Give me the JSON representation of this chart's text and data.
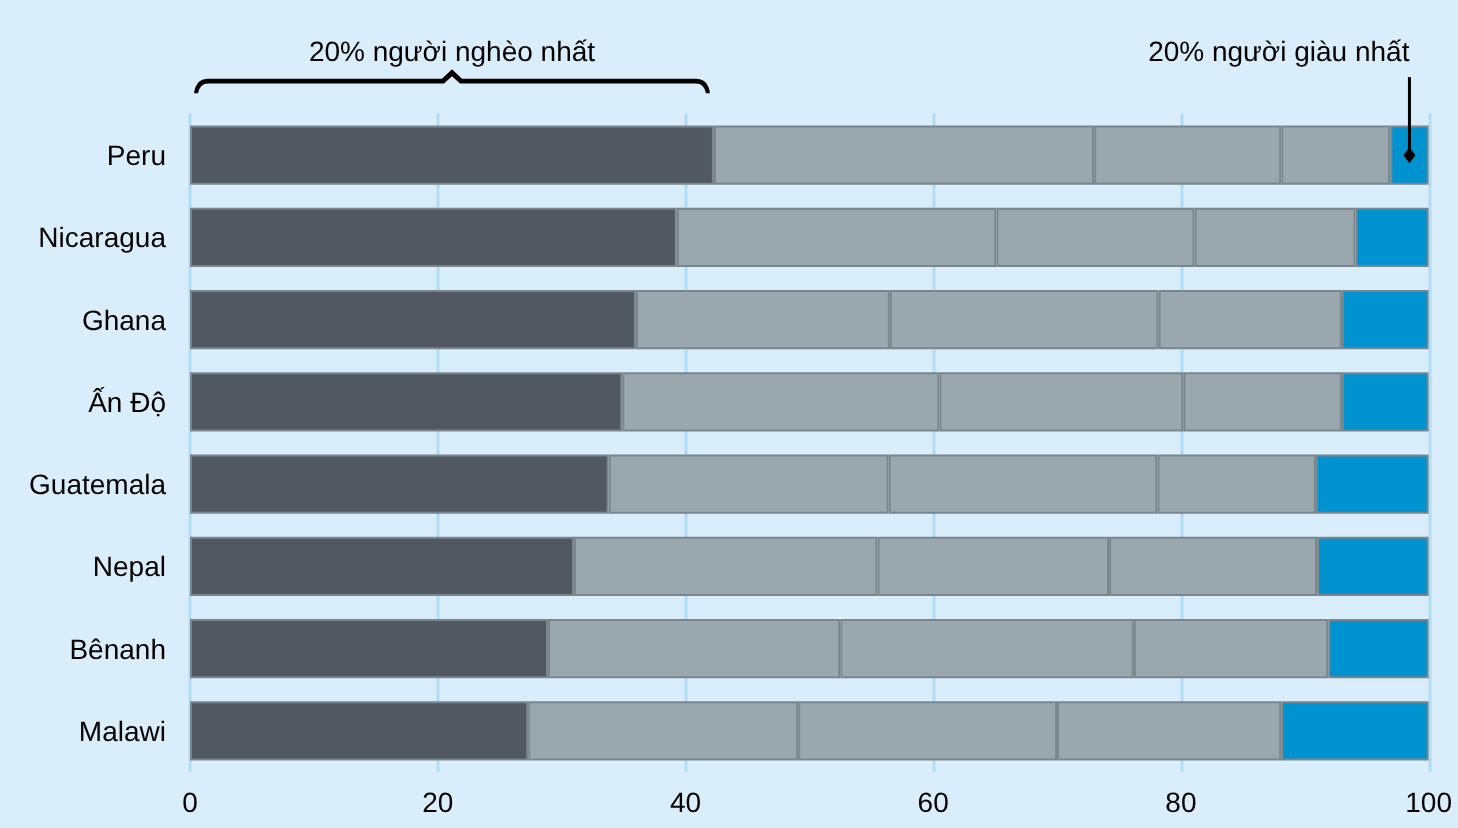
{
  "chart_data": {
    "type": "bar",
    "orientation": "horizontal",
    "stacked": true,
    "categories": [
      "Peru",
      "Nicaragua",
      "Ghana",
      "Ấn Độ",
      "Guatemala",
      "Nepal",
      "Bênanh",
      "Malawi"
    ],
    "series": [
      {
        "color": "#525860",
        "values": [
          42.3,
          39.3,
          36.0,
          34.9,
          33.8,
          31.0,
          28.9,
          27.3
        ]
      },
      {
        "color": "#9aa8ae",
        "values": [
          30.7,
          25.8,
          20.5,
          25.6,
          22.6,
          24.5,
          23.6,
          21.8
        ]
      },
      {
        "color": "#9aa8ae",
        "values": [
          15.1,
          16.0,
          21.7,
          19.7,
          21.7,
          18.7,
          23.7,
          20.9
        ]
      },
      {
        "color": "#9aa8ae",
        "values": [
          8.8,
          13.0,
          14.8,
          12.8,
          12.8,
          16.8,
          15.7,
          18.1
        ]
      },
      {
        "color": "#0093cf",
        "values": [
          3.1,
          5.9,
          7.0,
          7.0,
          9.1,
          9.0,
          8.1,
          11.9
        ]
      }
    ],
    "xlim": [
      0,
      100
    ],
    "xticks": [
      0,
      20,
      40,
      60,
      80,
      100
    ],
    "grid": "x",
    "annotations": [
      "20% người nghèo nhất",
      "20% người giàu nhất"
    ]
  }
}
